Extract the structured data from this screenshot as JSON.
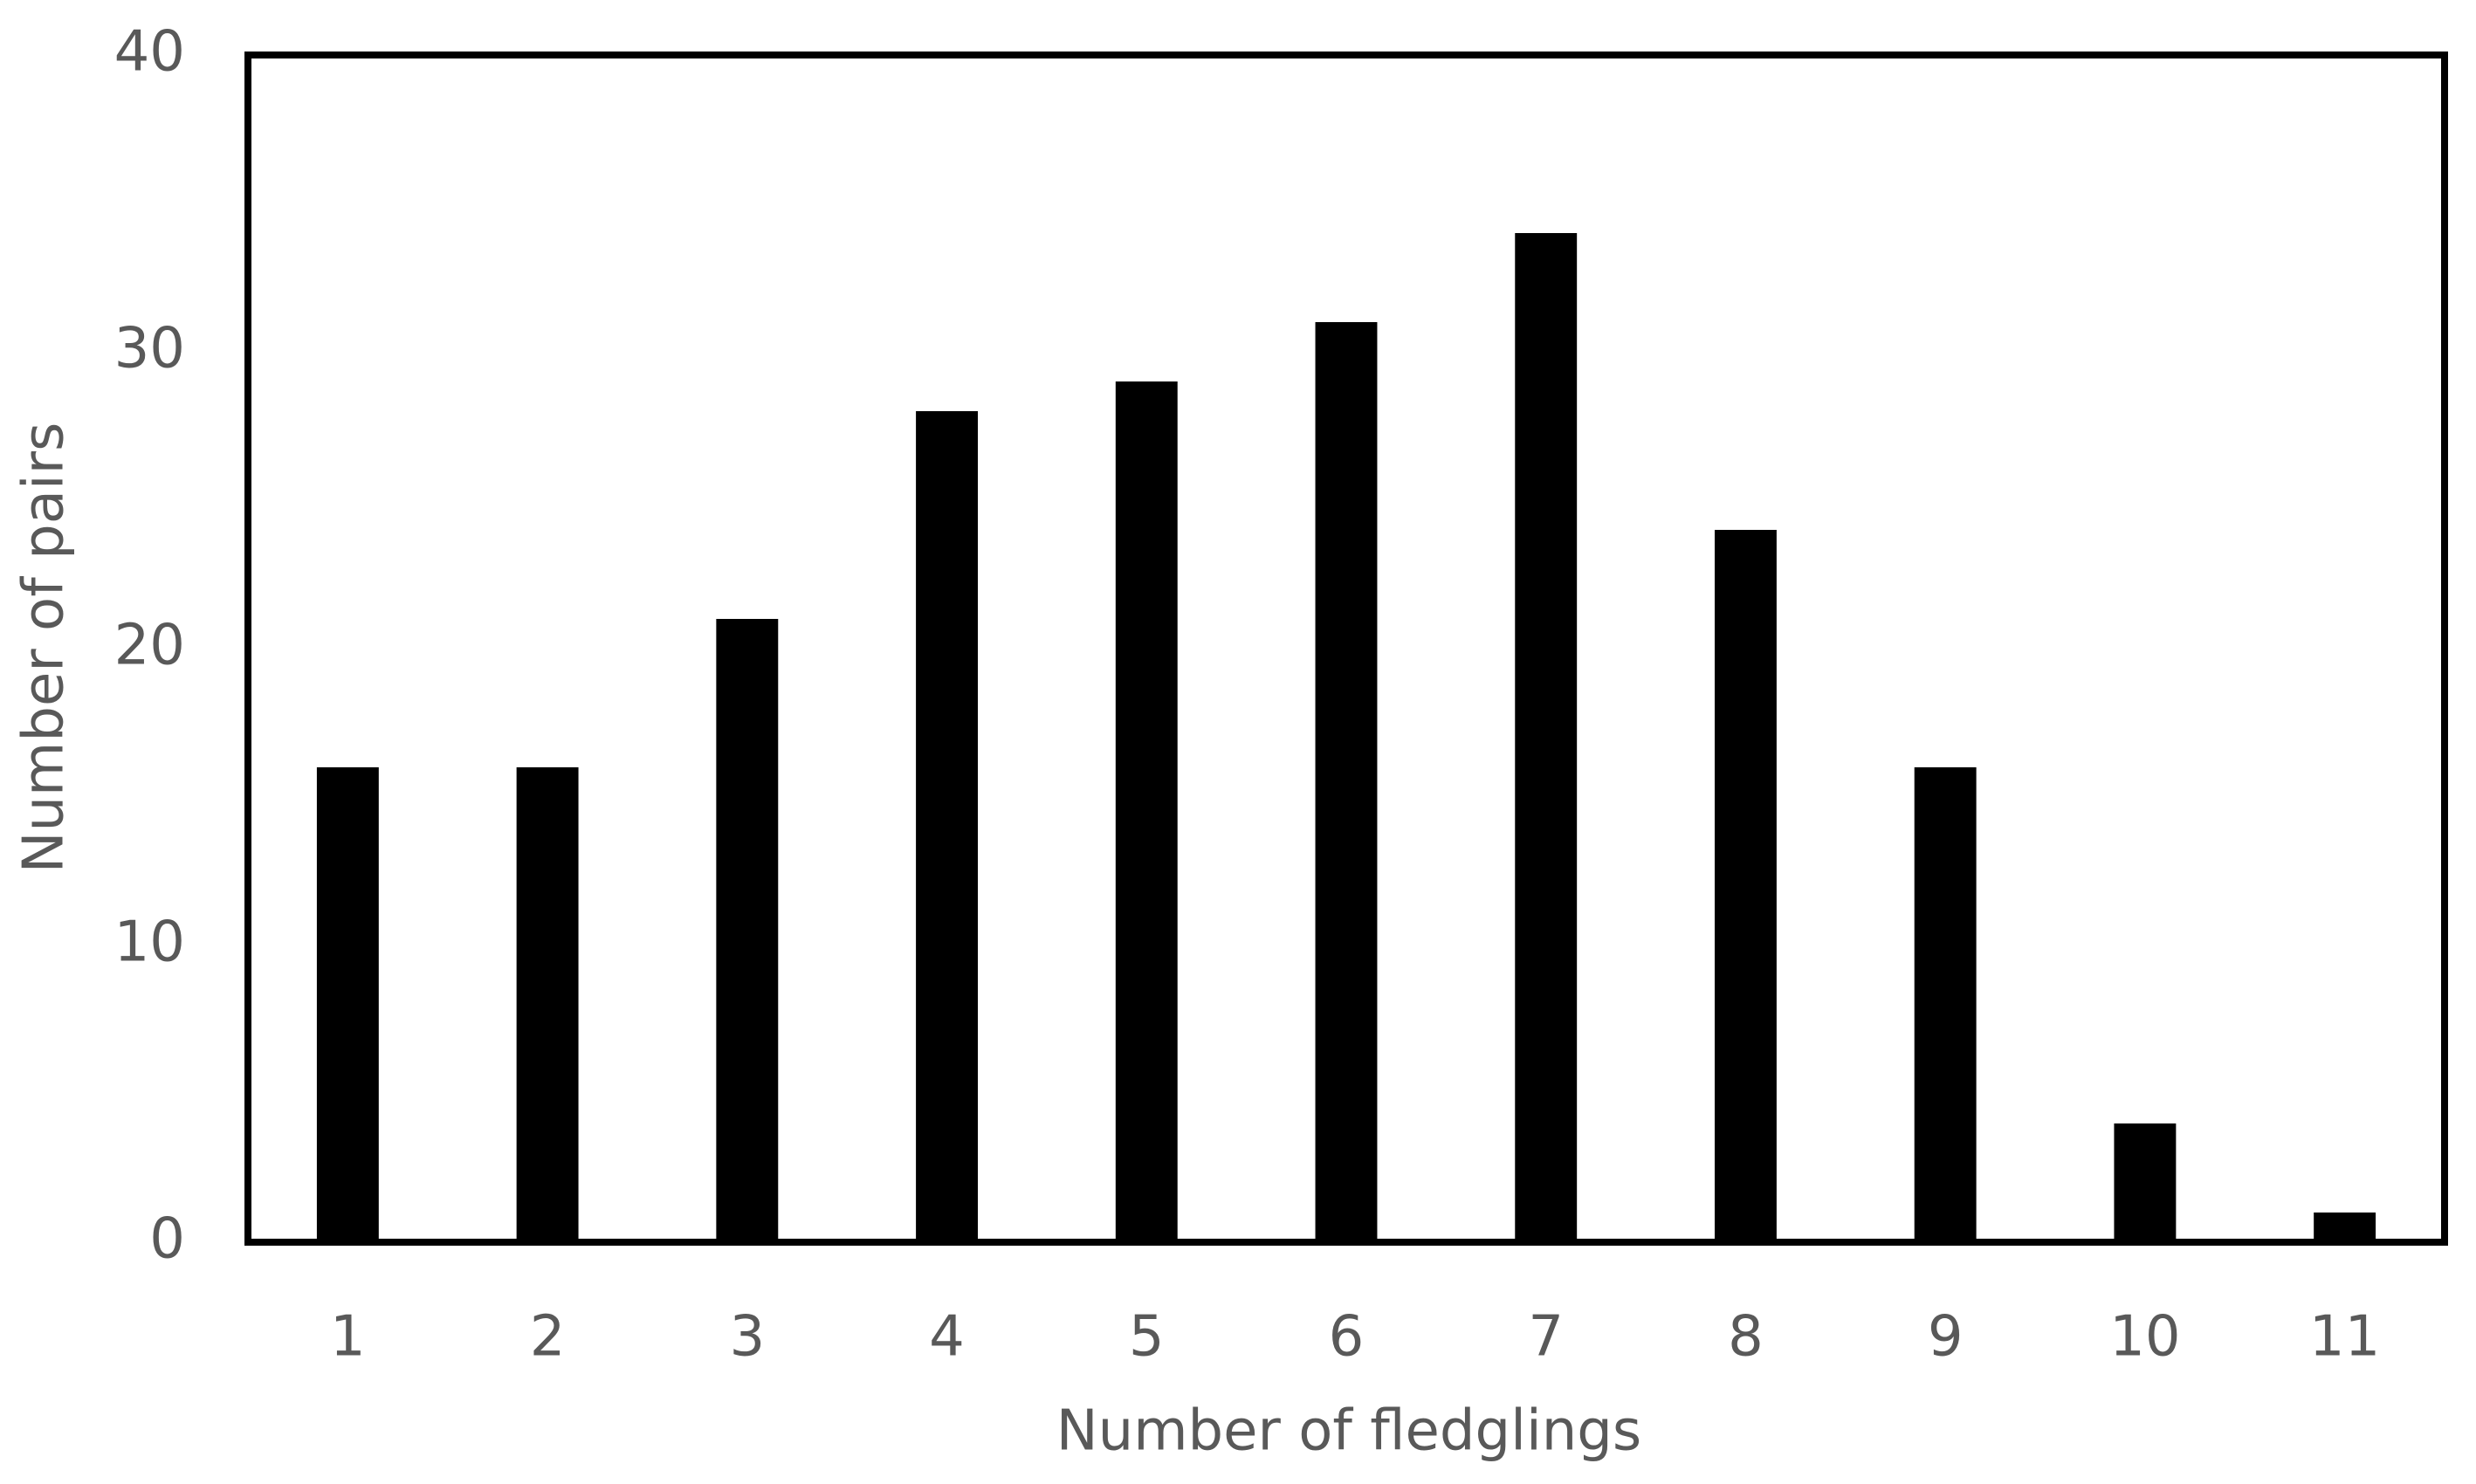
{
  "chart_data": {
    "type": "bar",
    "x_label": "Number of fledglings",
    "y_label": "Number of pairs",
    "categories": [
      "1",
      "2",
      "3",
      "4",
      "5",
      "6",
      "7",
      "8",
      "9",
      "10",
      "11"
    ],
    "values": [
      16,
      16,
      21,
      28,
      29,
      31,
      34,
      24,
      16,
      4,
      1
    ],
    "color": "#000000",
    "ylim": [
      0,
      40
    ],
    "yticks": [
      0,
      10,
      20,
      30,
      40
    ],
    "grid": false
  }
}
